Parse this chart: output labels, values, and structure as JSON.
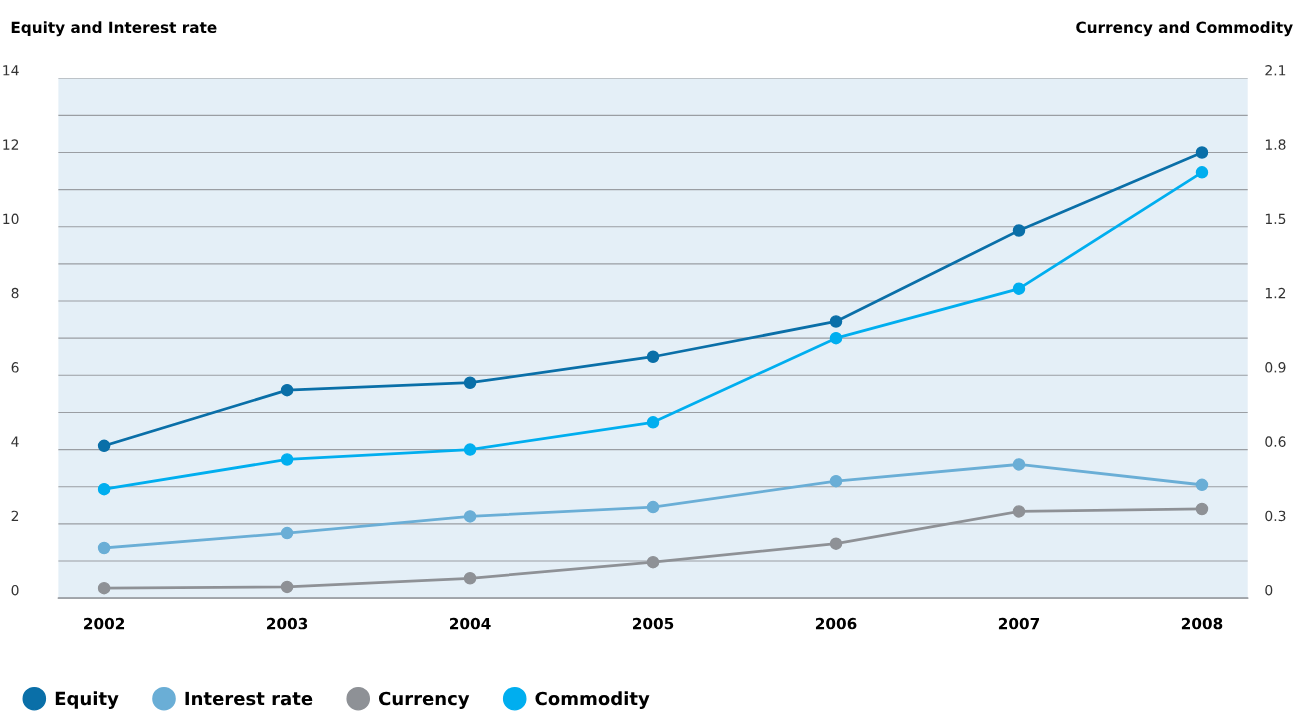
{
  "chart_data": {
    "type": "line",
    "ylabel": "Equity and Interest rate",
    "y2label": "Currency and Commodity",
    "categories": [
      "2002",
      "2003",
      "2004",
      "2005",
      "2006",
      "2007",
      "2008"
    ],
    "series": [
      {
        "name": "Equity",
        "color": "#0a6fa8",
        "values": [
          4.1,
          5.6,
          5.8,
          6.5,
          7.45,
          9.9,
          12.0
        ]
      },
      {
        "name": "Interest rate",
        "color": "#6aaed6",
        "values": [
          1.35,
          1.75,
          2.2,
          2.45,
          3.15,
          3.6,
          3.05
        ]
      },
      {
        "name": "Currency",
        "color": "#8e9196",
        "axis": "y2",
        "values": [
          0.04,
          0.045,
          0.08,
          0.145,
          0.22,
          0.35,
          0.36
        ]
      },
      {
        "name": "Commodity",
        "color": "#00aeef",
        "axis": "y2",
        "values": [
          0.44,
          0.56,
          0.6,
          0.71,
          1.05,
          1.25,
          1.72
        ]
      }
    ],
    "ylim": [
      0,
      14
    ],
    "yticks": [
      0,
      {
        "value": 1,
        "label": null
      },
      2,
      {
        "value": 3,
        "label": null
      },
      4,
      {
        "value": 5,
        "label": null
      },
      6,
      {
        "value": 7,
        "label": null
      },
      8,
      {
        "value": 9,
        "label": null
      },
      10,
      {
        "value": 11,
        "label": null
      },
      12,
      {
        "value": 13,
        "label": null
      },
      14
    ],
    "y2lim": [
      0,
      2.1
    ],
    "y2ticks": [
      0,
      0.3,
      0.6,
      0.9,
      1.2,
      1.5,
      1.8,
      2.1
    ],
    "grid": "y",
    "legend": "bottom left",
    "marker": "circle",
    "line_style": "solid"
  }
}
